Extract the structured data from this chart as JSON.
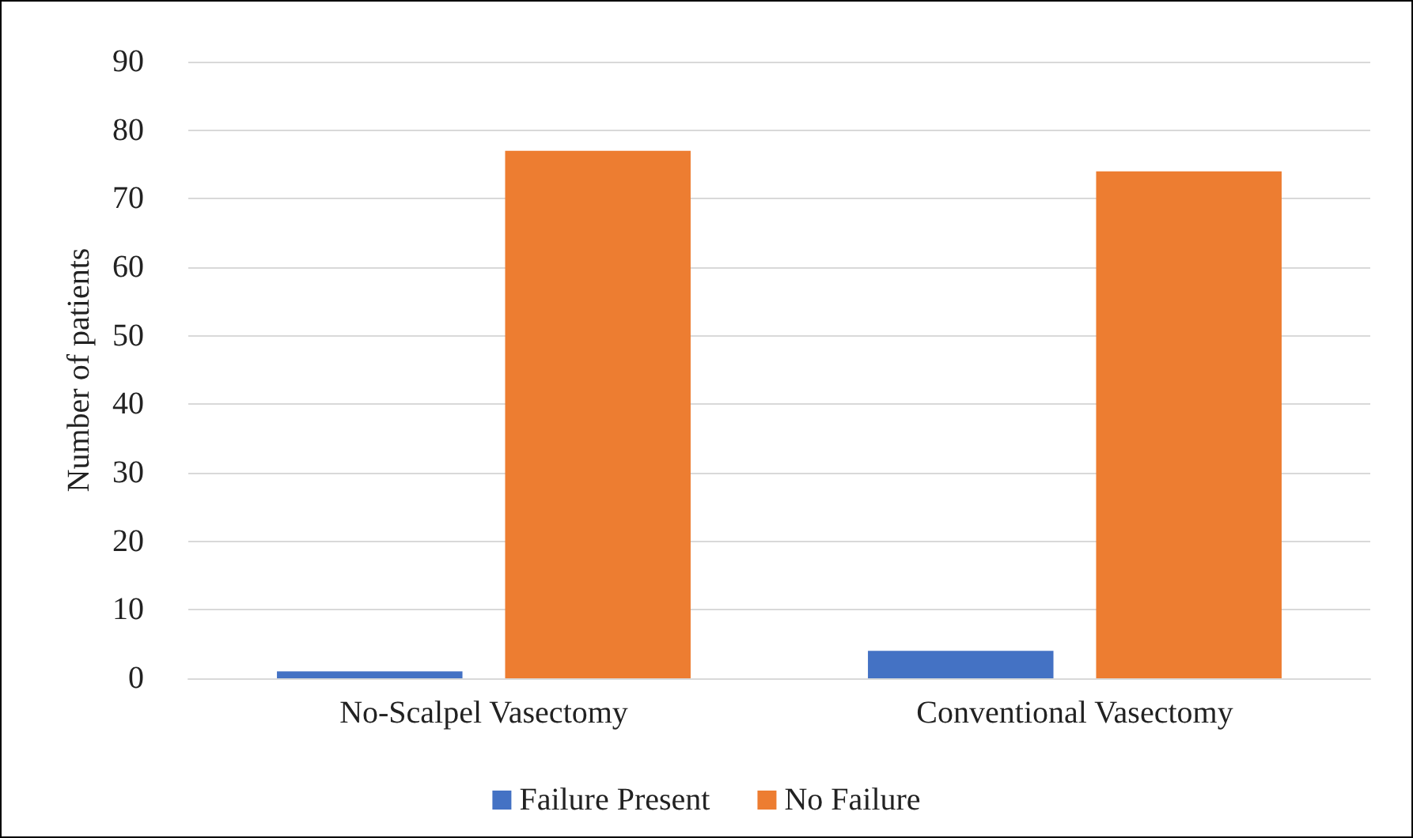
{
  "chart_data": {
    "type": "bar",
    "ylabel": "Number of patients",
    "categories": [
      "No-Scalpel Vasectomy",
      "Conventional Vasectomy"
    ],
    "series": [
      {
        "name": "Failure Present",
        "color": "#4472c4",
        "values": [
          1,
          4
        ]
      },
      {
        "name": "No Failure",
        "color": "#ed7d31",
        "values": [
          77,
          74
        ]
      }
    ],
    "ylim": [
      0,
      90
    ],
    "yticks": [
      0,
      10,
      20,
      30,
      40,
      50,
      60,
      70,
      80,
      90
    ],
    "grid": "y",
    "legend": "bottom"
  }
}
